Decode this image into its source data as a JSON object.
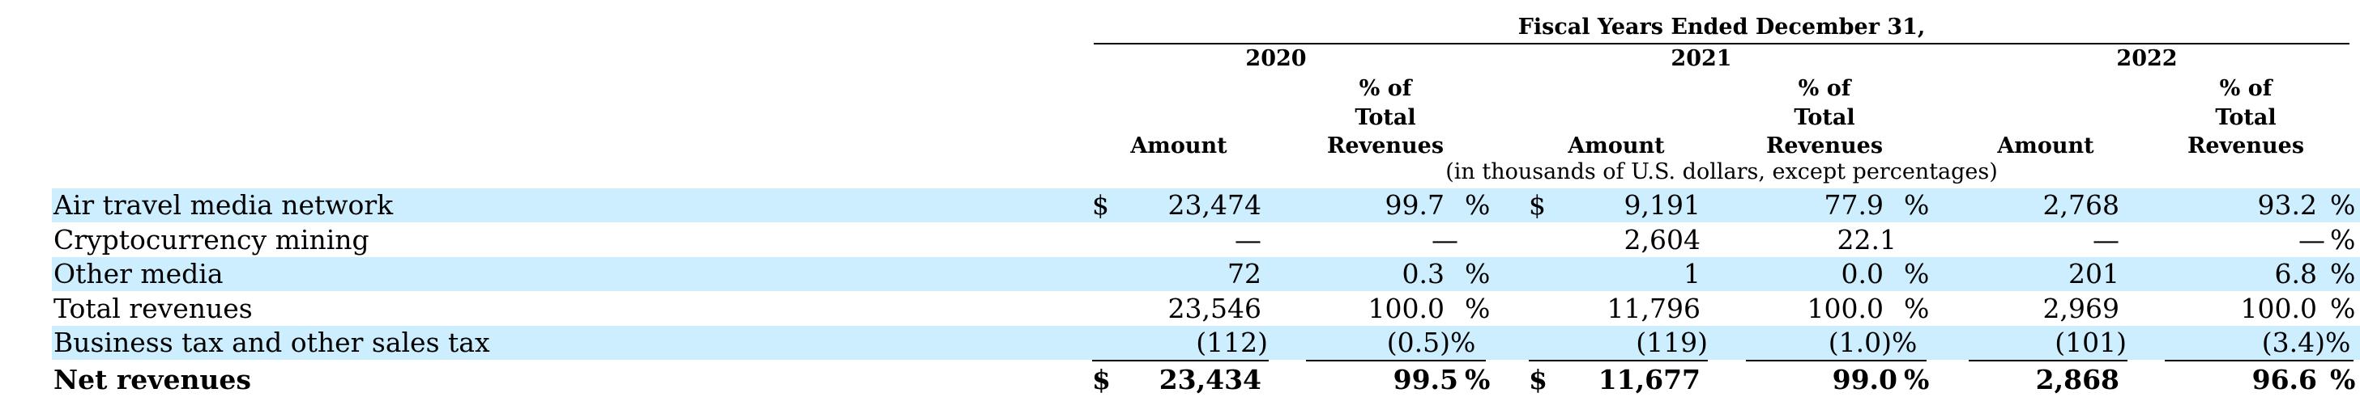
{
  "header": {
    "period_title": "Fiscal Years Ended December 31,",
    "years": [
      "2020",
      "2021",
      "2022"
    ],
    "amount_label": "Amount",
    "pct_label_line1": "% of",
    "pct_label_line2": "Total",
    "pct_label_line3": "Revenues",
    "units_note": "(in thousands of U.S. dollars, except percentages)"
  },
  "rows": [
    {
      "label": "Air travel media network",
      "cur1": "$",
      "a2020": "23,474",
      "p2020": "99.7",
      "s2020": "%",
      "cur2": "$",
      "a2021": "9,191",
      "p2021": "77.9",
      "s2021": "%",
      "a2022": "2,768",
      "p2022": "93.2",
      "s2022": "%",
      "shaded": true
    },
    {
      "label": "Cryptocurrency mining",
      "cur1": "",
      "a2020": "—",
      "p2020": "—",
      "s2020": "",
      "cur2": "",
      "a2021": "2,604",
      "p2021": "22.1",
      "s2021": "",
      "a2022": "—",
      "p2022": "—",
      "s2022": "%",
      "shaded": false
    },
    {
      "label": "Other media",
      "cur1": "",
      "a2020": "72",
      "p2020": "0.3",
      "s2020": "%",
      "cur2": "",
      "a2021": "1",
      "p2021": "0.0",
      "s2021": "%",
      "a2022": "201",
      "p2022": "6.8",
      "s2022": "%",
      "shaded": true
    },
    {
      "label": "Total revenues",
      "cur1": "",
      "a2020": "23,546",
      "p2020": "100.0",
      "s2020": "%",
      "cur2": "",
      "a2021": "11,796",
      "p2021": "100.0",
      "s2021": "%",
      "a2022": "2,969",
      "p2022": "100.0",
      "s2022": "%",
      "shaded": false
    },
    {
      "label": "Business tax and other sales tax",
      "cur1": "",
      "a2020": "(112)",
      "p2020": "(0.5)",
      "s2020": "%",
      "cur2": "",
      "a2021": "(119)",
      "p2021": "(1.0)",
      "s2021": "%",
      "a2022": "(101)",
      "p2022": "(3.4)",
      "s2022": "%",
      "shaded": true
    },
    {
      "label": "Net revenues",
      "cur1": "$",
      "a2020": "23,434",
      "p2020": "99.5",
      "s2020": "%",
      "cur2": "$",
      "a2021": "11,677",
      "p2021": "99.0",
      "s2021": "%",
      "a2022": "2,868",
      "p2022": "96.6",
      "s2022": "%",
      "shaded": false,
      "bold": true
    }
  ]
}
